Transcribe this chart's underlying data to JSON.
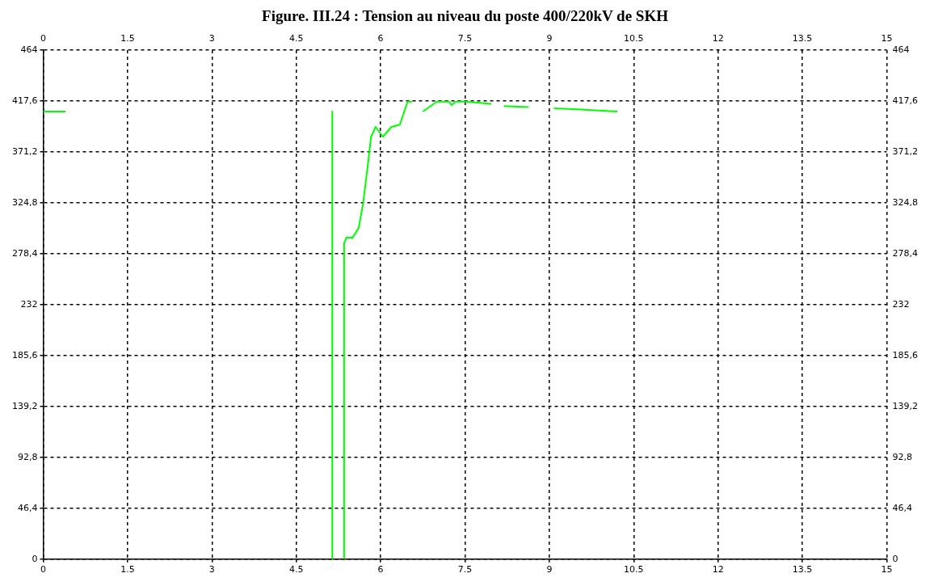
{
  "chart_data": {
    "type": "line",
    "title": "Figure. III.24 : Tension au niveau du poste 400/220kV de SKH",
    "x": [
      0,
      0.4,
      null,
      5.14,
      5.14,
      null,
      5.35,
      5.35,
      5.39,
      5.5,
      5.61,
      5.69,
      5.75,
      5.79,
      5.83,
      5.91,
      6.04,
      6.19,
      6.34,
      6.48,
      6.56,
      null,
      6.75,
      7.0,
      7.22,
      7.26,
      7.34,
      7.51,
      7.97,
      null,
      8.19,
      8.63,
      null,
      9.08,
      9.5,
      10.21
    ],
    "series": [
      {
        "color": "#00ff00",
        "values": [
          408,
          408,
          null,
          408,
          0,
          null,
          0,
          288,
          293,
          293,
          302,
          325,
          350,
          367,
          385,
          394,
          385,
          394,
          396,
          417,
          417,
          null,
          408,
          417,
          417,
          414,
          417,
          417,
          415,
          null,
          413,
          412,
          null,
          411,
          410,
          408
        ]
      }
    ],
    "xlim": [
      0,
      15
    ],
    "xticks": [
      0,
      1.5,
      3,
      4.5,
      6,
      7.5,
      9,
      10.5,
      12,
      13.5,
      15
    ],
    "x2lim": [
      0,
      15
    ],
    "x2ticks": [
      0,
      1.5,
      3,
      4.5,
      6,
      7.5,
      9,
      10.5,
      12,
      13.5,
      15
    ],
    "ylim": [
      0,
      464
    ],
    "yticks": [
      0,
      {
        "value": 46.4,
        "label": "46,4"
      },
      {
        "value": 92.8,
        "label": "92,8"
      },
      {
        "value": 139.2,
        "label": "139,2"
      },
      {
        "value": 185.6,
        "label": "185,6"
      },
      232,
      {
        "value": 278.4,
        "label": "278,4"
      },
      {
        "value": 324.8,
        "label": "324,8"
      },
      {
        "value": 371.2,
        "label": "371,2"
      },
      {
        "value": 417.6,
        "label": "417,6"
      },
      464
    ],
    "y2lim": [
      0,
      464
    ],
    "y2ticks": [
      0,
      {
        "value": 46.4,
        "label": "46,4"
      },
      {
        "value": 92.8,
        "label": "92,8"
      },
      {
        "value": 139.2,
        "label": "139,2"
      },
      {
        "value": 185.6,
        "label": "185,6"
      },
      232,
      {
        "value": 278.4,
        "label": "278,4"
      },
      {
        "value": 324.8,
        "label": "324,8"
      },
      {
        "value": 371.2,
        "label": "371,2"
      },
      {
        "value": 417.6,
        "label": "417,6"
      },
      464
    ],
    "grid": true,
    "legend": false,
    "marker": "none",
    "line_style": "solid"
  }
}
